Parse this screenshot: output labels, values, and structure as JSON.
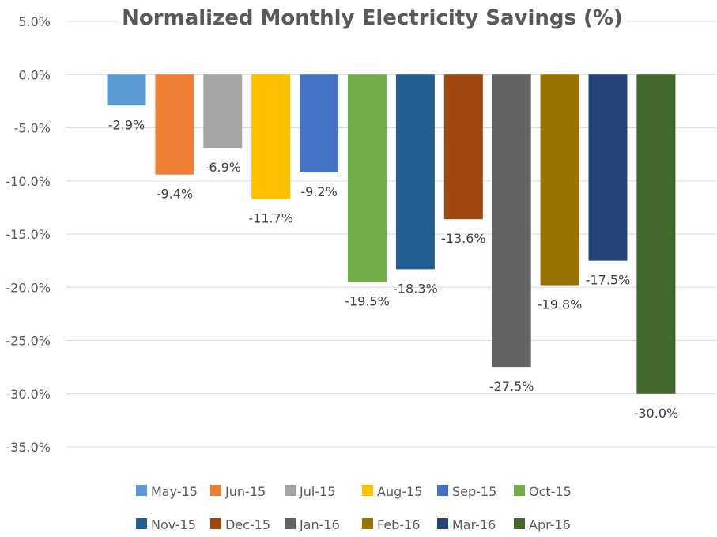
{
  "chart_data": {
    "type": "bar",
    "title": "Normalized Monthly Electricity Savings (%)",
    "xlabel": "",
    "ylabel": "",
    "ylim": [
      -35,
      5
    ],
    "yticks": [
      "5.0%",
      "0.0%",
      "-5.0%",
      "-10.0%",
      "-15.0%",
      "-20.0%",
      "-25.0%",
      "-30.0%",
      "-35.0%"
    ],
    "categories": [
      "May-15",
      "Jun-15",
      "Jul-15",
      "Aug-15",
      "Sep-15",
      "Oct-15",
      "Nov-15",
      "Dec-15",
      "Jan-16",
      "Feb-16",
      "Mar-16",
      "Apr-16"
    ],
    "values": [
      -2.9,
      -9.4,
      -6.9,
      -11.7,
      -9.2,
      -19.5,
      -18.3,
      -13.6,
      -27.5,
      -19.8,
      -17.5,
      -30.0
    ],
    "data_labels": [
      "-2.9%",
      "-9.4%",
      "-6.9%",
      "-11.7%",
      "-9.2%",
      "-19.5%",
      "-18.3%",
      "-13.6%",
      "-27.5%",
      "-19.8%",
      "-17.5%",
      "-30.0%"
    ],
    "colors": [
      "#5b9bd5",
      "#ed7d31",
      "#a5a5a5",
      "#ffc000",
      "#4472c4",
      "#70ad47",
      "#255e91",
      "#9e480e",
      "#636363",
      "#997300",
      "#264478",
      "#43682b"
    ],
    "grid": true,
    "legend": "bottom"
  }
}
